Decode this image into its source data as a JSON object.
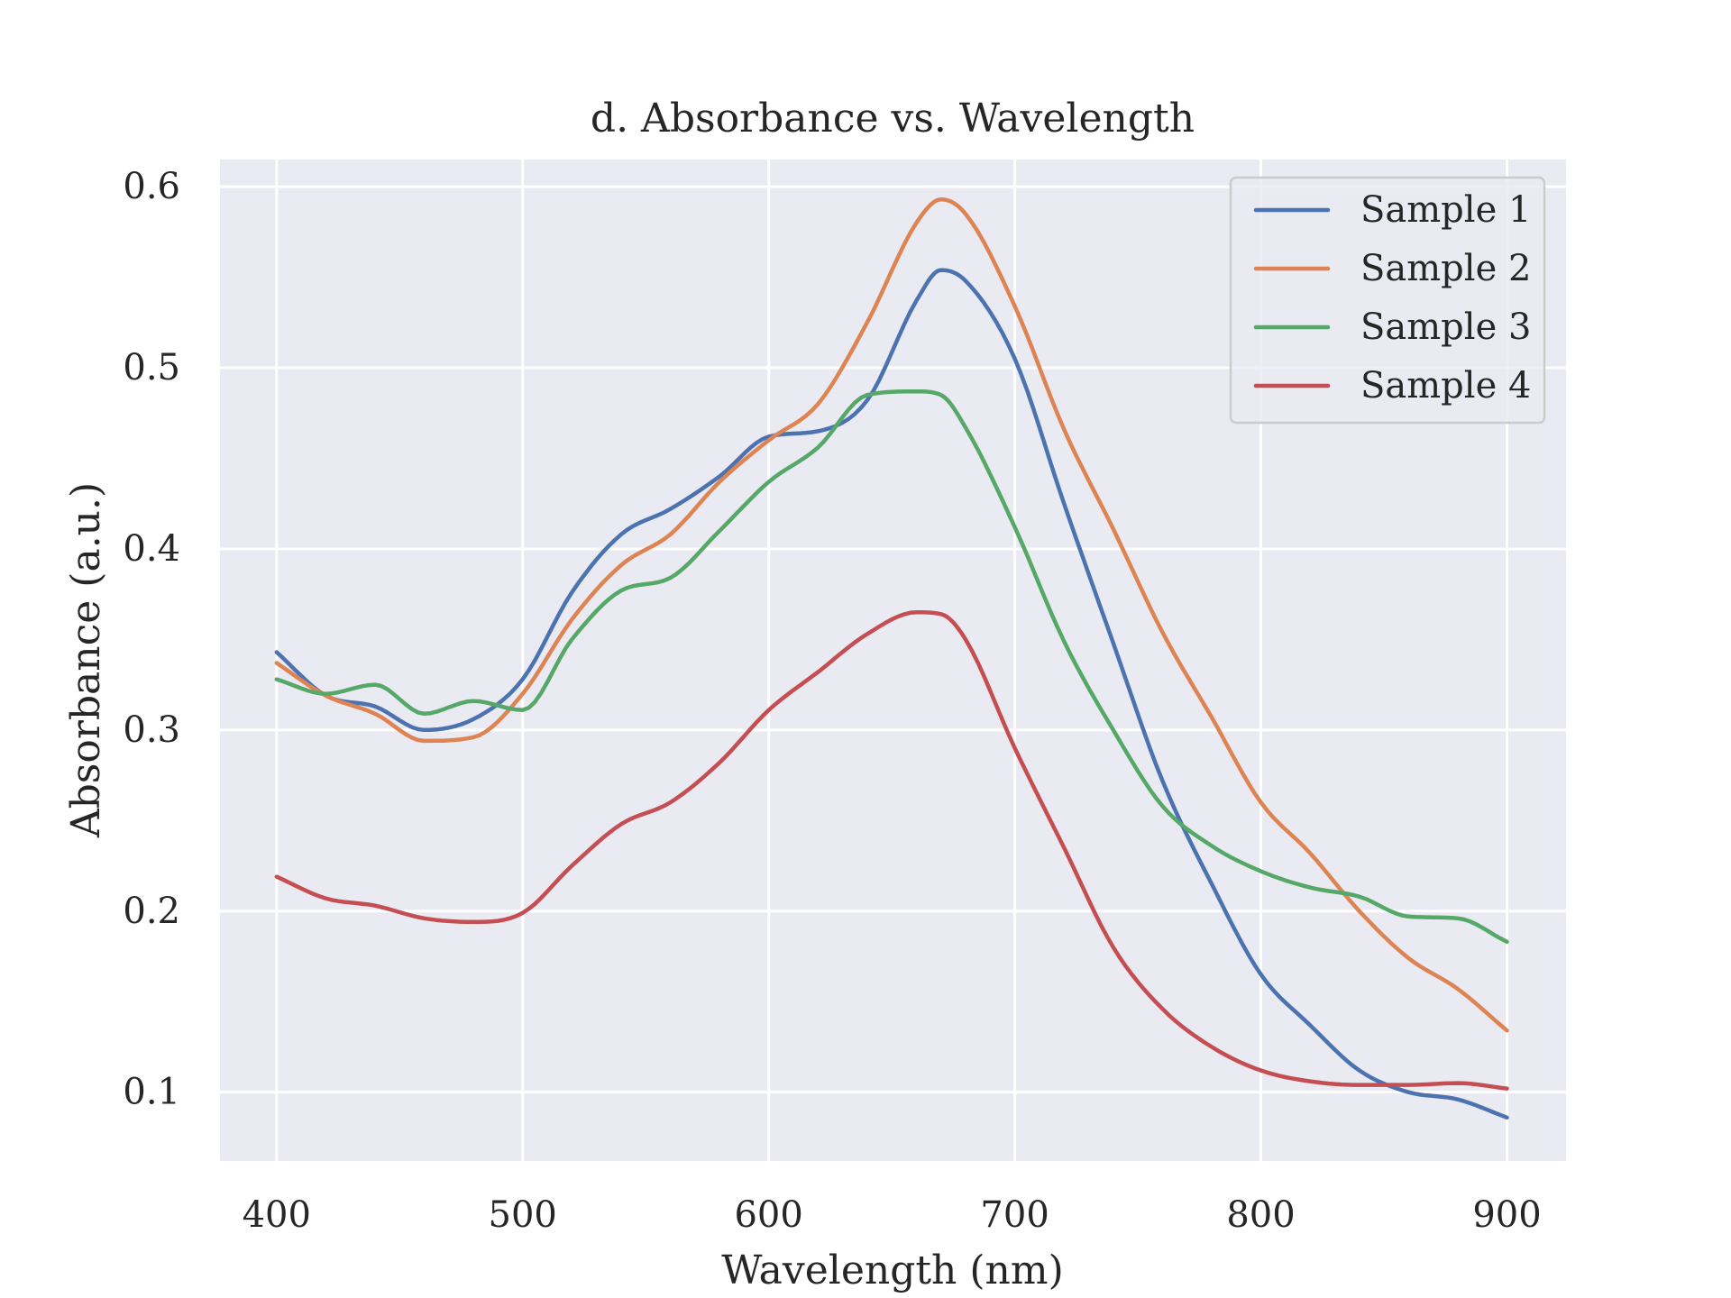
{
  "chart_data": {
    "type": "line",
    "title": "d. Absorbance vs. Wavelength",
    "xlabel": "Wavelength (nm)",
    "ylabel": "Absorbance (a.u.)",
    "xlim": [
      377,
      924
    ],
    "ylim": [
      0.062,
      0.615
    ],
    "xticks": [
      400,
      500,
      600,
      700,
      800,
      900
    ],
    "yticks": [
      0.1,
      0.2,
      0.3,
      0.4,
      0.5,
      0.6
    ],
    "xtick_labels": [
      "400",
      "500",
      "600",
      "700",
      "800",
      "900"
    ],
    "ytick_labels": [
      "0.1",
      "0.2",
      "0.3",
      "0.4",
      "0.5",
      "0.6"
    ],
    "grid": true,
    "legend_position": "top-right",
    "background": "#eaeaf2",
    "x": [
      400,
      420,
      440,
      460,
      480,
      500,
      520,
      540,
      560,
      580,
      600,
      620,
      640,
      660,
      670,
      680,
      700,
      720,
      740,
      760,
      780,
      800,
      820,
      840,
      860,
      880,
      900
    ],
    "series": [
      {
        "name": "Sample 1",
        "color": "#4c72b0",
        "values": [
          0.343,
          0.319,
          0.313,
          0.3,
          0.306,
          0.328,
          0.376,
          0.408,
          0.422,
          0.44,
          0.462,
          0.465,
          0.482,
          0.537,
          0.554,
          0.548,
          0.505,
          0.425,
          0.348,
          0.272,
          0.215,
          0.165,
          0.137,
          0.112,
          0.1,
          0.096,
          0.086
        ]
      },
      {
        "name": "Sample 2",
        "color": "#dd8452",
        "values": [
          0.337,
          0.319,
          0.309,
          0.294,
          0.296,
          0.32,
          0.361,
          0.391,
          0.408,
          0.437,
          0.46,
          0.48,
          0.525,
          0.58,
          0.593,
          0.585,
          0.534,
          0.466,
          0.411,
          0.354,
          0.307,
          0.26,
          0.232,
          0.2,
          0.174,
          0.157,
          0.134
        ]
      },
      {
        "name": "Sample 3",
        "color": "#55a868",
        "values": [
          0.328,
          0.32,
          0.325,
          0.309,
          0.316,
          0.311,
          0.35,
          0.377,
          0.384,
          0.41,
          0.437,
          0.456,
          0.485,
          0.487,
          0.485,
          0.467,
          0.412,
          0.349,
          0.3,
          0.258,
          0.236,
          0.222,
          0.213,
          0.208,
          0.197,
          0.196,
          0.183
        ]
      },
      {
        "name": "Sample 4",
        "color": "#c44e52",
        "values": [
          0.219,
          0.207,
          0.203,
          0.196,
          0.194,
          0.199,
          0.225,
          0.248,
          0.26,
          0.282,
          0.311,
          0.332,
          0.353,
          0.365,
          0.364,
          0.35,
          0.29,
          0.235,
          0.18,
          0.146,
          0.125,
          0.112,
          0.106,
          0.104,
          0.104,
          0.105,
          0.102
        ]
      }
    ]
  }
}
